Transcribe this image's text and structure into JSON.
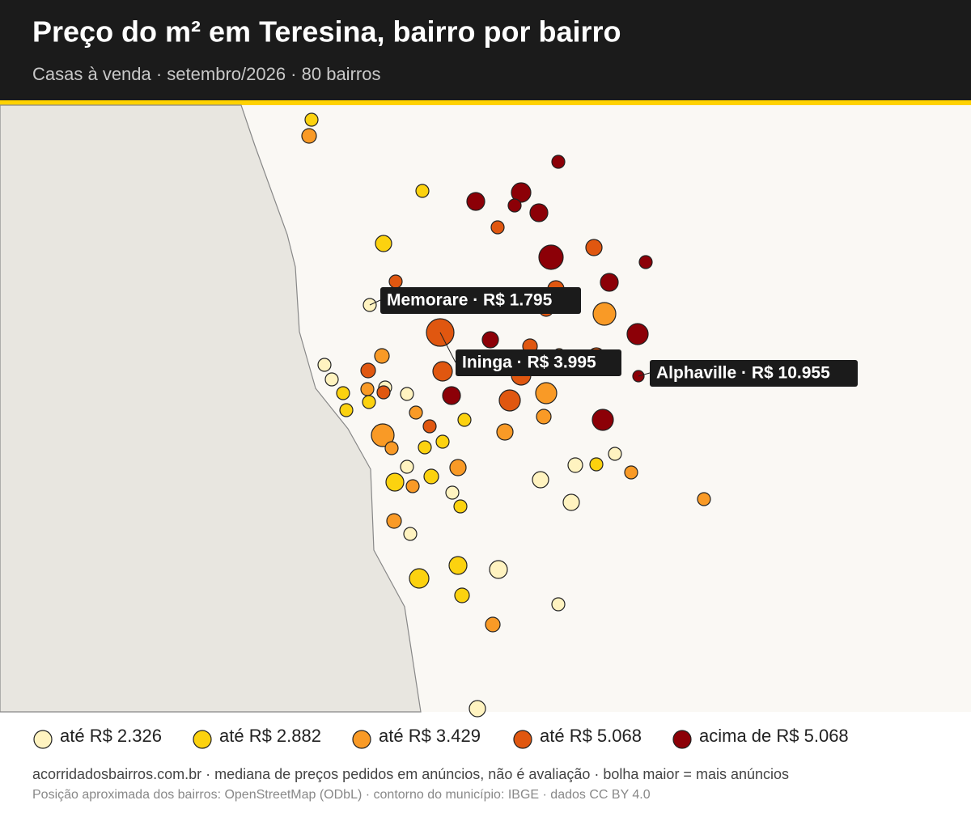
{
  "header": {
    "title": "Preço do m² em Teresina, bairro por bairro",
    "subtitle": "Casas à venda · setembro/2026 · 80 bairros"
  },
  "legend": {
    "items": [
      {
        "label": "até R$ 2.326",
        "color": "#fff3c0"
      },
      {
        "label": "até R$ 2.882",
        "color": "#fcd20f"
      },
      {
        "label": "até R$ 3.429",
        "color": "#f99a26"
      },
      {
        "label": "até R$ 5.068",
        "color": "#e05710"
      },
      {
        "label": "acima de R$ 5.068",
        "color": "#8c0007"
      }
    ]
  },
  "annotations": [
    {
      "label": "Memorare · R$ 1.795"
    },
    {
      "label": "Ininga · R$ 3.995"
    },
    {
      "label": "Alphaville · R$ 10.955"
    }
  ],
  "footer": {
    "line1": "acorridadosbairros.com.br · mediana de preços pedidos em anúncios, não é avaliação · bolha maior = mais anúncios",
    "line2": "Posição aproximada dos bairros: OpenStreetMap (ODbL) · contorno do município: IBGE · dados CC BY 4.0"
  }
}
